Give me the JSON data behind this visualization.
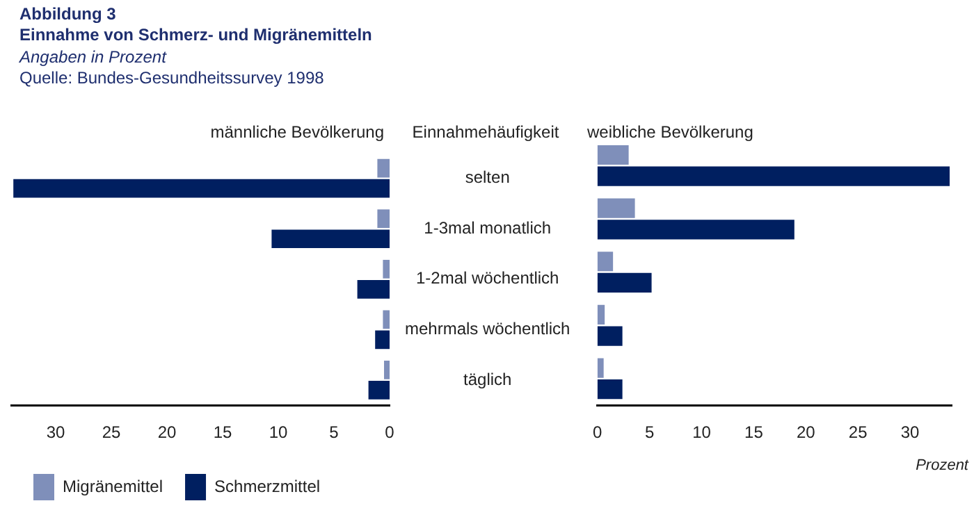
{
  "chart_data": [
    {
      "type": "bar",
      "orientation": "horizontal",
      "title": "Einnahme von Schmerz- und Migränemitteln",
      "subtitle": "Angaben in Prozent",
      "annotations": [
        "Abbildung 3",
        "Quelle: Bundes-Gesundheitssurvey 1998",
        "männliche Bevölkerung"
      ],
      "ylabel": "Einnahmehäufigkeit",
      "categories": [
        "selten",
        "1-3mal monatlich",
        "1-2mal wöchentlich",
        "mehrmals wöchentlich",
        "täglich"
      ],
      "series": [
        {
          "name": "Migränemittel",
          "color": "#7f8fba",
          "values": [
            1.1,
            1.1,
            0.6,
            0.6,
            0.5
          ]
        },
        {
          "name": "Schmerzmittel",
          "color": "#001f60",
          "values": [
            33.8,
            10.6,
            2.9,
            1.3,
            1.9
          ]
        }
      ],
      "xlim": [
        34,
        0
      ],
      "xticks": [
        30,
        25,
        20,
        15,
        10,
        5,
        0
      ],
      "legend": "bottom"
    },
    {
      "type": "bar",
      "orientation": "horizontal",
      "title": "weibliche Bevölkerung",
      "xlabel": "Prozent",
      "categories": [
        null,
        null,
        null,
        null,
        null
      ],
      "series": [
        {
          "color": "#7f8fba",
          "values": [
            3.0,
            3.6,
            1.5,
            0.7,
            0.6
          ]
        },
        {
          "color": "#001f60",
          "values": [
            33.8,
            18.9,
            5.2,
            2.4,
            2.4
          ]
        }
      ],
      "xlim": [
        0,
        34
      ],
      "xticks": [
        0,
        5,
        10,
        15,
        20,
        25,
        30
      ],
      "tick_labels": "x"
    }
  ]
}
